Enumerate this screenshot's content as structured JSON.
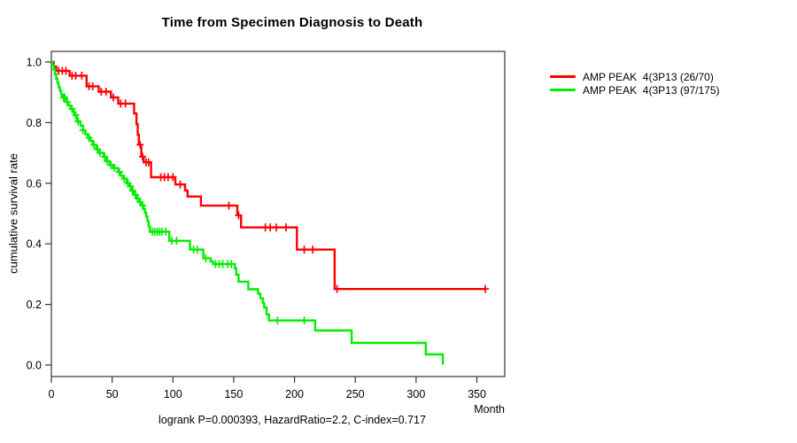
{
  "chart_data": {
    "type": "line",
    "subtype": "kaplan-meier-step-survival",
    "title": "Time from Specimen Diagnosis to Death",
    "xlabel": "Month",
    "ylabel": "cumulative survival rate",
    "annotation": "logrank P=0.000393, HazardRatio=2.2, C-index=0.717",
    "x_ticks": [
      0,
      50,
      100,
      150,
      200,
      250,
      300,
      350
    ],
    "y_ticks": [
      0.0,
      0.2,
      0.4,
      0.6,
      0.8,
      1.0
    ],
    "xlim": [
      0,
      373
    ],
    "ylim": [
      0,
      1
    ],
    "grid": false,
    "legend_position": "right-outside",
    "axis_color": "#333333",
    "series": [
      {
        "name": "AMP PEAK  4(3P13 (26/70)",
        "color": "#ff0000",
        "events_over_n": "26/70",
        "end_month": 357,
        "steps": [
          [
            0,
            1.0
          ],
          [
            2,
            0.985
          ],
          [
            4,
            0.971
          ],
          [
            15,
            0.955
          ],
          [
            29,
            0.92
          ],
          [
            39,
            0.902
          ],
          [
            49,
            0.883
          ],
          [
            55,
            0.863
          ],
          [
            68,
            0.83
          ],
          [
            70,
            0.795
          ],
          [
            71,
            0.76
          ],
          [
            72,
            0.727
          ],
          [
            74,
            0.688
          ],
          [
            76,
            0.669
          ],
          [
            82,
            0.62
          ],
          [
            102,
            0.596
          ],
          [
            110,
            0.576
          ],
          [
            112,
            0.556
          ],
          [
            123,
            0.526
          ],
          [
            153,
            0.494
          ],
          [
            156,
            0.454
          ],
          [
            202,
            0.381
          ],
          [
            233,
            0.251
          ]
        ],
        "censor_months": [
          6,
          9,
          12,
          17,
          20,
          25,
          31,
          34,
          41,
          45,
          51,
          57,
          61,
          73,
          75,
          78,
          80,
          90,
          93,
          96,
          100,
          106,
          146,
          154,
          176,
          180,
          185,
          193,
          208,
          215,
          235,
          357
        ]
      },
      {
        "name": "AMP PEAK  4(3P13 (97/175)",
        "color": "#00ee00",
        "events_over_n": "97/175",
        "end_month": 323,
        "steps": [
          [
            0,
            1.0
          ],
          [
            1,
            0.991
          ],
          [
            2,
            0.975
          ],
          [
            3,
            0.96
          ],
          [
            4,
            0.945
          ],
          [
            5,
            0.931
          ],
          [
            6,
            0.917
          ],
          [
            7,
            0.905
          ],
          [
            8,
            0.893
          ],
          [
            9,
            0.883
          ],
          [
            12,
            0.868
          ],
          [
            14,
            0.856
          ],
          [
            16,
            0.845
          ],
          [
            18,
            0.835
          ],
          [
            19,
            0.825
          ],
          [
            21,
            0.804
          ],
          [
            24,
            0.79
          ],
          [
            26,
            0.775
          ],
          [
            28,
            0.762
          ],
          [
            30,
            0.75
          ],
          [
            32,
            0.74
          ],
          [
            34,
            0.727
          ],
          [
            37,
            0.712
          ],
          [
            39,
            0.7
          ],
          [
            43,
            0.687
          ],
          [
            45,
            0.673
          ],
          [
            48,
            0.66
          ],
          [
            51,
            0.65
          ],
          [
            55,
            0.637
          ],
          [
            57,
            0.625
          ],
          [
            59,
            0.615
          ],
          [
            62,
            0.6
          ],
          [
            64,
            0.59
          ],
          [
            66,
            0.575
          ],
          [
            68,
            0.562
          ],
          [
            70,
            0.55
          ],
          [
            72,
            0.538
          ],
          [
            74,
            0.527
          ],
          [
            76,
            0.515
          ],
          [
            77,
            0.503
          ],
          [
            78,
            0.49
          ],
          [
            79,
            0.475
          ],
          [
            80,
            0.458
          ],
          [
            81,
            0.44
          ],
          [
            97,
            0.41
          ],
          [
            114,
            0.381
          ],
          [
            125,
            0.352
          ],
          [
            131,
            0.342
          ],
          [
            133,
            0.333
          ],
          [
            151,
            0.319
          ],
          [
            152,
            0.298
          ],
          [
            154,
            0.275
          ],
          [
            162,
            0.25
          ],
          [
            170,
            0.235
          ],
          [
            172,
            0.22
          ],
          [
            174,
            0.205
          ],
          [
            175,
            0.19
          ],
          [
            177,
            0.167
          ],
          [
            179,
            0.147
          ],
          [
            217,
            0.114
          ],
          [
            247,
            0.073
          ],
          [
            308,
            0.035
          ],
          [
            322,
            0.005
          ]
        ],
        "censor_months": [
          10,
          11,
          13,
          17,
          20,
          22,
          26,
          31,
          35,
          38,
          40,
          44,
          46,
          49,
          52,
          56,
          60,
          63,
          65,
          67,
          69,
          71,
          73,
          75,
          83,
          85,
          87,
          89,
          91,
          94,
          99,
          103,
          117,
          120,
          127,
          135,
          138,
          141,
          145,
          148,
          186,
          208
        ]
      }
    ]
  }
}
